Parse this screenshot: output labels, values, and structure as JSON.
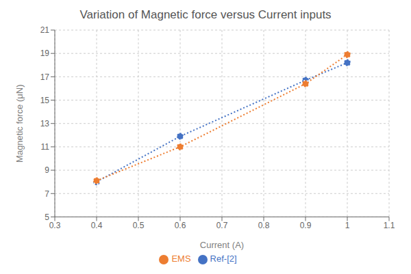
{
  "chart_data": {
    "type": "line",
    "title": "Variation of Magnetic force versus Current inputs",
    "xlabel": "Current (A)",
    "ylabel": "Magnetic force (μN)",
    "x": [
      0.4,
      0.6,
      0.9,
      1.0
    ],
    "series": [
      {
        "name": "Ref-[2]",
        "color": "#4472C4",
        "values": [
          8.0,
          11.9,
          16.7,
          18.2
        ],
        "marker": "circle",
        "line_style": "dotted"
      },
      {
        "name": "EMS",
        "color": "#ED7D31",
        "values": [
          8.1,
          11.0,
          16.4,
          18.9
        ],
        "marker": "circle",
        "line_style": "dotted"
      }
    ],
    "xlim": [
      0.3,
      1.1
    ],
    "xticks": [
      0.3,
      0.4,
      0.5,
      0.6,
      0.7,
      0.8,
      0.9,
      1.0,
      1.1
    ],
    "ylim": [
      5,
      21
    ],
    "yticks": [
      5,
      7,
      9,
      11,
      13,
      15,
      17,
      19,
      21
    ],
    "grid": true,
    "legend": "bottom"
  }
}
